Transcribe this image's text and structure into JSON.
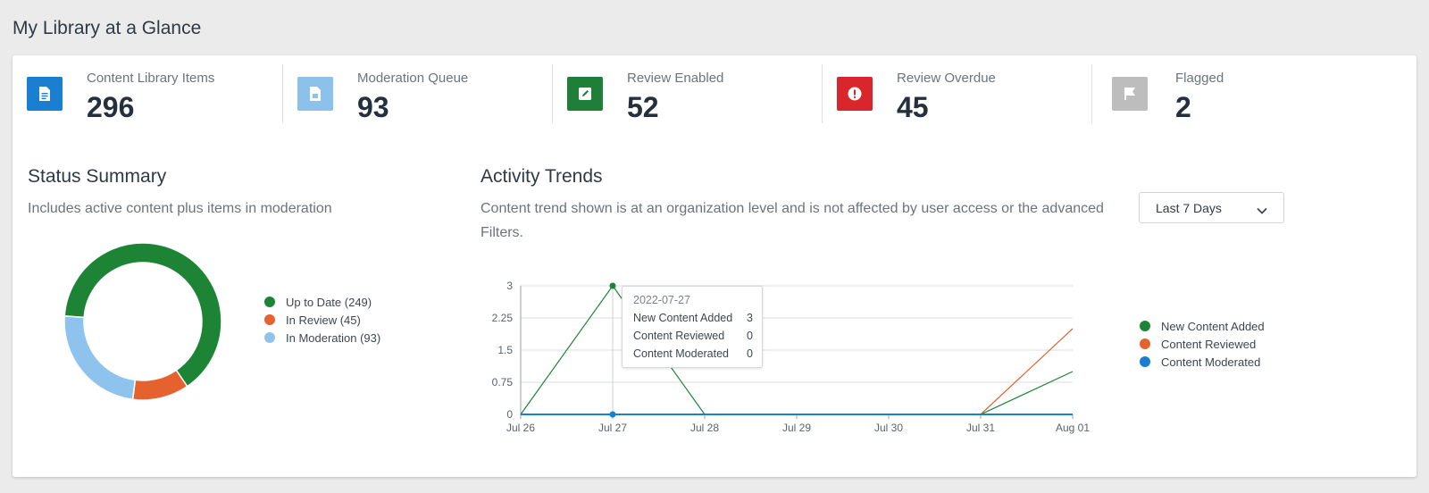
{
  "page": {
    "title": "My Library at a Glance"
  },
  "stats": [
    {
      "label": "Content Library Items",
      "value": "296",
      "icon": "document-icon",
      "color": "#1a7ed1"
    },
    {
      "label": "Moderation Queue",
      "value": "93",
      "icon": "document-pending-icon",
      "color": "#8cc1ec"
    },
    {
      "label": "Review Enabled",
      "value": "52",
      "icon": "edit-icon",
      "color": "#1f7f38"
    },
    {
      "label": "Review Overdue",
      "value": "45",
      "icon": "alert-icon",
      "color": "#d9262c"
    },
    {
      "label": "Flagged",
      "value": "2",
      "icon": "flag-icon",
      "color": "#bdbdbd"
    }
  ],
  "status_summary": {
    "title": "Status Summary",
    "description": "Includes active content plus items in moderation",
    "legend": [
      {
        "label": "Up to Date (249)",
        "color": "#1d8435"
      },
      {
        "label": "In Review (45)",
        "color": "#e5622f"
      },
      {
        "label": "In Moderation (93)",
        "color": "#8ec3ee"
      }
    ]
  },
  "activity_trends": {
    "title": "Activity Trends",
    "description_line1": "Content trend shown is at an organization level and is not affected by user access or the advanced",
    "description_line2": "Filters.",
    "range_select": {
      "selected": "Last 7 Days"
    },
    "legend": [
      {
        "label": "New Content Added",
        "color": "#1d8435"
      },
      {
        "label": "Content Reviewed",
        "color": "#e5622f"
      },
      {
        "label": "Content Moderated",
        "color": "#1a7ed1"
      }
    ],
    "tooltip": {
      "date": "2022-07-27",
      "rows": [
        {
          "label": "New Content Added",
          "value": "3"
        },
        {
          "label": "Content Reviewed",
          "value": "0"
        },
        {
          "label": "Content Moderated",
          "value": "0"
        }
      ]
    }
  },
  "chart_data": [
    {
      "type": "pie",
      "categories": [
        "Up to Date",
        "In Review",
        "In Moderation"
      ],
      "values": [
        249,
        45,
        93
      ],
      "colors": [
        "#1d8435",
        "#e5622f",
        "#8ec3ee"
      ],
      "legend": "right"
    },
    {
      "type": "line",
      "x": [
        "Jul 26",
        "Jul 27",
        "Jul 28",
        "Jul 29",
        "Jul 30",
        "Jul 31",
        "Aug 01"
      ],
      "y_ticks": [
        "0",
        "0.75",
        "1.5",
        "2.25",
        "3"
      ],
      "ylim": [
        0,
        3
      ],
      "grid": true,
      "legend": "right",
      "series": [
        {
          "name": "New Content Added",
          "color": "#1d8435",
          "values": [
            0,
            3,
            0,
            0,
            0,
            0,
            1
          ]
        },
        {
          "name": "Content Reviewed",
          "color": "#e5622f",
          "values": [
            0,
            0,
            0,
            0,
            0,
            0,
            2
          ]
        },
        {
          "name": "Content Moderated",
          "color": "#1a7ed1",
          "values": [
            0,
            0,
            0,
            0,
            0,
            0,
            0
          ]
        }
      ]
    }
  ]
}
